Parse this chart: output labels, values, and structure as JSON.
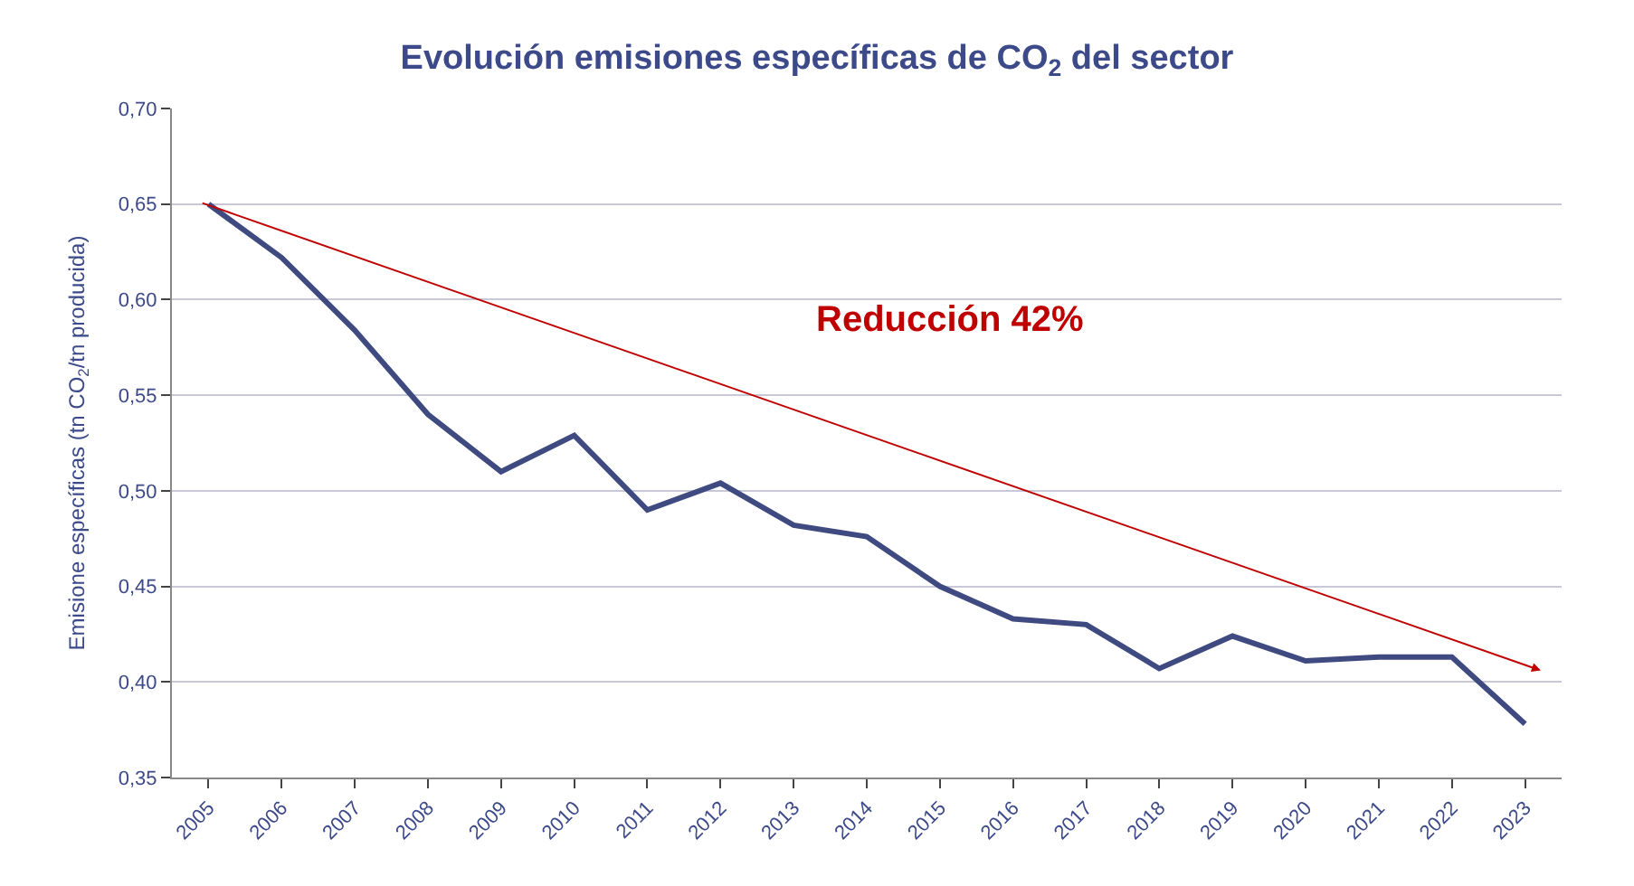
{
  "chart_data": {
    "type": "line",
    "title": "Evolución emisiones específicas de CO$_{2}$ del sector",
    "ylabel": "Emisione específicas (tn CO$_{2}$/tn producida)",
    "categories": [
      "2005",
      "2006",
      "2007",
      "2008",
      "2009",
      "2010",
      "2011",
      "2012",
      "2013",
      "2014",
      "2015",
      "2016",
      "2017",
      "2018",
      "2019",
      "2020",
      "2021",
      "2022",
      "2023"
    ],
    "series": [
      {
        "color": "#3f4a80",
        "values": [
          0.65,
          0.622,
          0.584,
          0.54,
          0.51,
          0.529,
          0.49,
          0.504,
          0.482,
          0.476,
          0.45,
          0.433,
          0.43,
          0.407,
          0.424,
          0.411,
          0.413,
          0.413,
          0.378
        ]
      }
    ],
    "annotations": [
      "Reducción 42%"
    ],
    "ylim": [
      0.35,
      0.7
    ],
    "yticks": [
      {
        "value": 0.35,
        "label": "0,35"
      },
      {
        "value": 0.4,
        "label": "0,40"
      },
      {
        "value": 0.45,
        "label": "0,45"
      },
      {
        "value": 0.5,
        "label": "0,50"
      },
      {
        "value": 0.55,
        "label": "0,55"
      },
      {
        "value": 0.6,
        "label": "0,60"
      },
      {
        "value": 0.65,
        "label": "0,65"
      },
      {
        "value": 0.7,
        "label": "0,70"
      }
    ],
    "grid": "y",
    "legend": false,
    "marker": "none",
    "line_style": "solid"
  }
}
